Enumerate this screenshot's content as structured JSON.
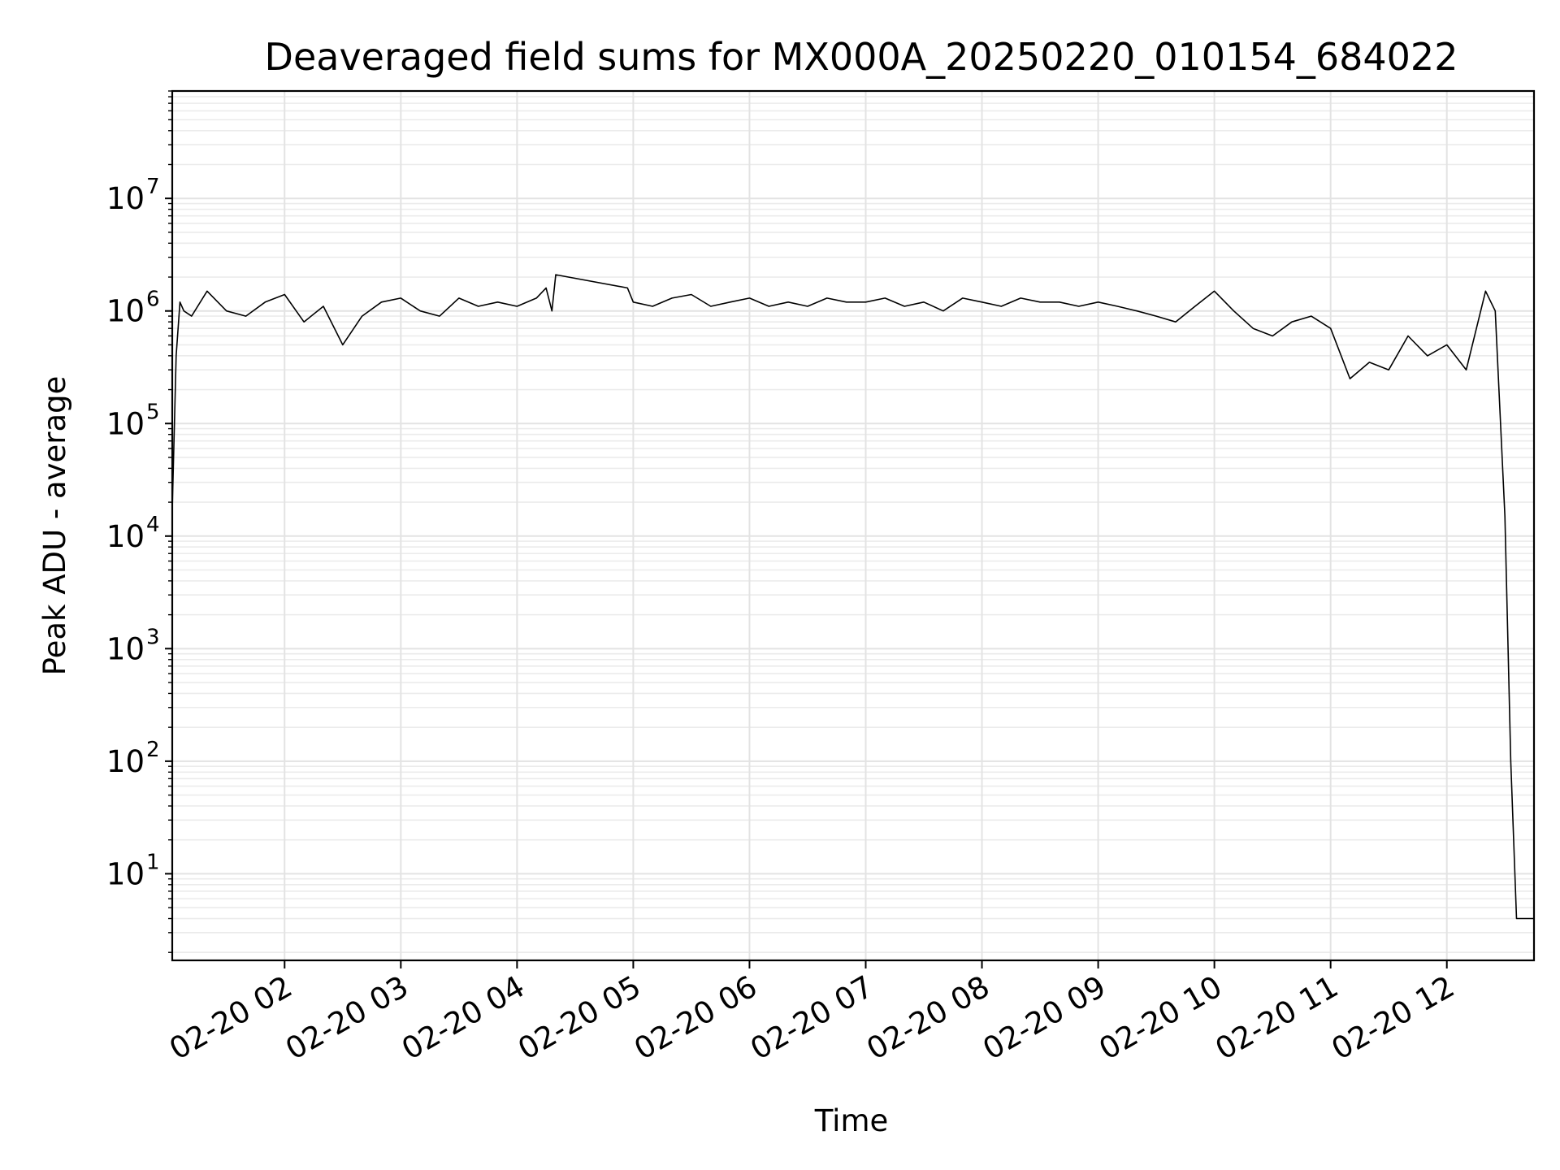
{
  "chart_data": {
    "type": "line",
    "title": "Deaveraged field sums for MX000A_20250220_010154_684022",
    "xlabel": "Time",
    "ylabel": "Peak ADU - average",
    "yscale": "log",
    "ylim": [
      1.7,
      90000000
    ],
    "xlim": [
      "02-20 01:02",
      "02-20 12:45"
    ],
    "x_tick_labels": [
      "02-20 02",
      "02-20 03",
      "02-20 04",
      "02-20 05",
      "02-20 06",
      "02-20 07",
      "02-20 08",
      "02-20 09",
      "02-20 10",
      "02-20 11",
      "02-20 12"
    ],
    "y_tick_base": "10",
    "y_tick_exponents": [
      "1",
      "2",
      "3",
      "4",
      "5",
      "6",
      "7"
    ],
    "grid": true,
    "line_color": "#000000",
    "series": [
      {
        "x": [
          "02-20 01:02",
          "02-20 01:04",
          "02-20 01:06",
          "02-20 01:08",
          "02-20 01:12",
          "02-20 01:20",
          "02-20 01:30",
          "02-20 01:40",
          "02-20 01:50",
          "02-20 02:00",
          "02-20 02:10",
          "02-20 02:20",
          "02-20 02:30",
          "02-20 02:40",
          "02-20 02:50",
          "02-20 03:00",
          "02-20 03:10",
          "02-20 03:20",
          "02-20 03:30",
          "02-20 03:40",
          "02-20 03:50",
          "02-20 04:00",
          "02-20 04:10",
          "02-20 04:15",
          "02-20 04:18",
          "02-20 04:20",
          "02-20 04:57",
          "02-20 05:00",
          "02-20 05:10",
          "02-20 05:20",
          "02-20 05:30",
          "02-20 05:40",
          "02-20 05:50",
          "02-20 06:00",
          "02-20 06:10",
          "02-20 06:20",
          "02-20 06:30",
          "02-20 06:40",
          "02-20 06:50",
          "02-20 07:00",
          "02-20 07:10",
          "02-20 07:20",
          "02-20 07:30",
          "02-20 07:40",
          "02-20 07:50",
          "02-20 08:00",
          "02-20 08:10",
          "02-20 08:20",
          "02-20 08:30",
          "02-20 08:40",
          "02-20 08:50",
          "02-20 09:00",
          "02-20 09:10",
          "02-20 09:20",
          "02-20 09:30",
          "02-20 09:40",
          "02-20 09:50",
          "02-20 10:00",
          "02-20 10:10",
          "02-20 10:20",
          "02-20 10:30",
          "02-20 10:40",
          "02-20 10:50",
          "02-20 11:00",
          "02-20 11:10",
          "02-20 11:20",
          "02-20 11:30",
          "02-20 11:40",
          "02-20 11:50",
          "02-20 12:00",
          "02-20 12:10",
          "02-20 12:20",
          "02-20 12:25",
          "02-20 12:30",
          "02-20 12:33",
          "02-20 12:36",
          "02-20 12:38",
          "02-20 12:40",
          "02-20 12:45"
        ],
        "values": [
          17000,
          400000,
          1200000,
          1000000,
          900000,
          1500000,
          1000000,
          900000,
          1200000,
          1400000,
          800000,
          1100000,
          500000,
          900000,
          1200000,
          1300000,
          1000000,
          900000,
          1300000,
          1100000,
          1200000,
          1100000,
          1300000,
          1600000,
          1000000,
          2100000,
          1600000,
          1200000,
          1100000,
          1300000,
          1400000,
          1100000,
          1200000,
          1300000,
          1100000,
          1200000,
          1100000,
          1300000,
          1200000,
          1200000,
          1300000,
          1100000,
          1200000,
          1000000,
          1300000,
          1200000,
          1100000,
          1300000,
          1200000,
          1200000,
          1100000,
          1200000,
          1100000,
          1000000,
          900000,
          800000,
          1100000,
          1500000,
          1000000,
          700000,
          600000,
          800000,
          900000,
          700000,
          250000,
          350000,
          300000,
          600000,
          400000,
          500000,
          300000,
          1500000,
          1000000,
          15000,
          100,
          4,
          4,
          4,
          4
        ]
      }
    ]
  }
}
